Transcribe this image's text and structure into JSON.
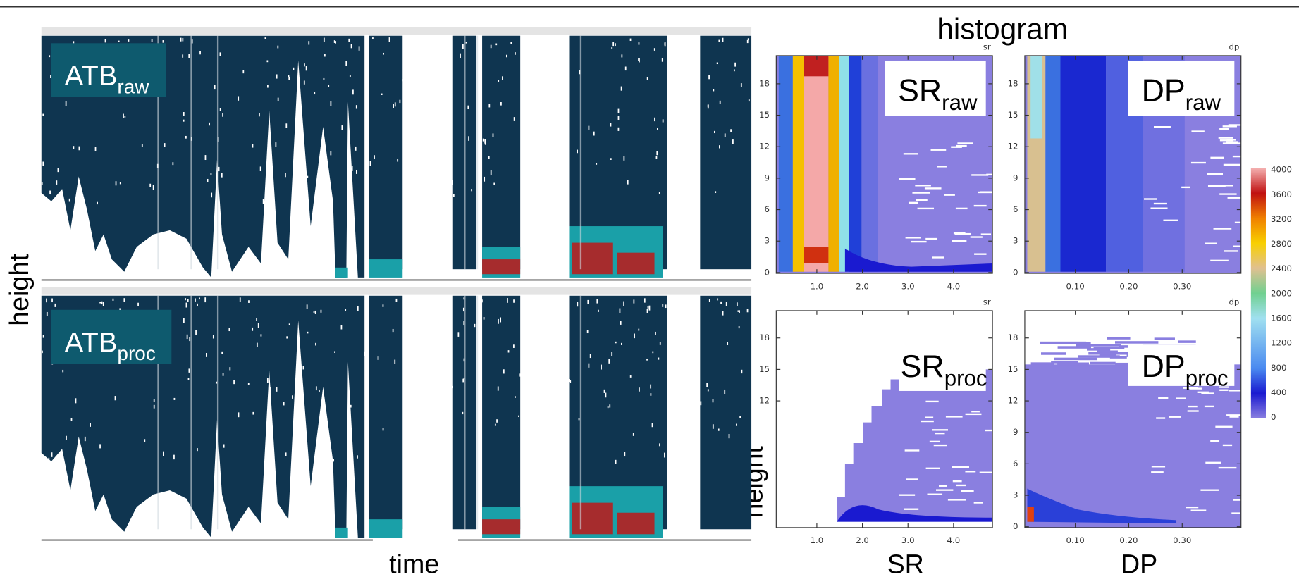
{
  "title": "histogram",
  "profiles": {
    "panels": [
      {
        "label": "ATB",
        "subscript": "raw"
      },
      {
        "label": "ATB",
        "subscript": "proc"
      }
    ],
    "y_label": "height",
    "x_label": "time"
  },
  "histograms": {
    "panels": [
      {
        "label": "SR",
        "subscript": "raw",
        "corner": "sr",
        "yticks": [
          "0",
          "3",
          "6",
          "9",
          "12",
          "15",
          "18"
        ],
        "xticks": [
          "1.0",
          "2.0",
          "3.0",
          "4.0"
        ]
      },
      {
        "label": "DP",
        "subscript": "raw",
        "corner": "dp",
        "yticks": [
          "0",
          "3",
          "6",
          "9",
          "12",
          "15",
          "18"
        ],
        "xticks": [
          "0.10",
          "0.20",
          "0.30"
        ]
      },
      {
        "label": "SR",
        "subscript": "proc",
        "corner": "sr",
        "yticks": [
          "12",
          "15",
          "18"
        ],
        "xticks": [
          "1.0",
          "2.0",
          "3.0",
          "4.0"
        ]
      },
      {
        "label": "DP",
        "subscript": "proc",
        "corner": "dp",
        "yticks": [
          "0",
          "3",
          "6",
          "9",
          "12",
          "15",
          "18"
        ],
        "xticks": [
          "0.10",
          "0.20",
          "0.30"
        ]
      }
    ],
    "y_label": "height",
    "x_labels": [
      "SR",
      "DP"
    ]
  },
  "colorbar": {
    "ticks": [
      "4000",
      "3600",
      "3200",
      "2800",
      "2400",
      "2000",
      "1600",
      "1200",
      "800",
      "400",
      "0"
    ]
  }
}
